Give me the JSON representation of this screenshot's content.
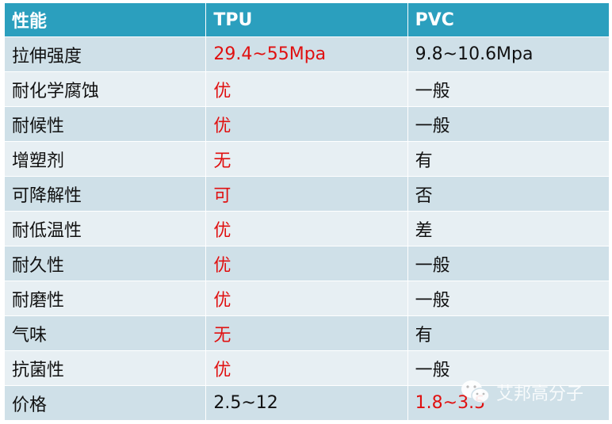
{
  "header": [
    "性能",
    "TPU",
    "PVC"
  ],
  "rows": [
    {
      "property": "拉伸强度",
      "tpu": "29.4~55Mpa",
      "pvc": "9.8~10.6Mpa",
      "tpu_red": true,
      "pvc_red": false
    },
    {
      "property": "耐化学腐蚀",
      "tpu": "优",
      "pvc": "一般",
      "tpu_red": true,
      "pvc_red": false
    },
    {
      "property": "耐候性",
      "tpu": "优",
      "pvc": "一般",
      "tpu_red": true,
      "pvc_red": false
    },
    {
      "property": "增塑剂",
      "tpu": "无",
      "pvc": "有",
      "tpu_red": true,
      "pvc_red": false
    },
    {
      "property": "可降解性",
      "tpu": "可",
      "pvc": "否",
      "tpu_red": true,
      "pvc_red": false
    },
    {
      "property": "耐低温性",
      "tpu": "优",
      "pvc": "差",
      "tpu_red": true,
      "pvc_red": false
    },
    {
      "property": "耐久性",
      "tpu": "优",
      "pvc": "一般",
      "tpu_red": true,
      "pvc_red": false
    },
    {
      "property": "耐磨性",
      "tpu": "优",
      "pvc": "一般",
      "tpu_red": true,
      "pvc_red": false
    },
    {
      "property": "气味",
      "tpu": "无",
      "pvc": "有",
      "tpu_red": true,
      "pvc_red": false
    },
    {
      "property": "抗菌性",
      "tpu": "优",
      "pvc": "一般",
      "tpu_red": true,
      "pvc_red": false
    },
    {
      "property": "价格",
      "tpu": "2.5~12",
      "pvc": "1.8~3.5",
      "tpu_red": false,
      "pvc_red": true
    }
  ],
  "watermark": {
    "text": "艾邦高分子",
    "icon": "wechat-icon"
  },
  "colors": {
    "header": "#2b9fbe",
    "row_dark": "#cfe0e8",
    "row_light": "#e7eff3",
    "highlight": "#e01010"
  }
}
